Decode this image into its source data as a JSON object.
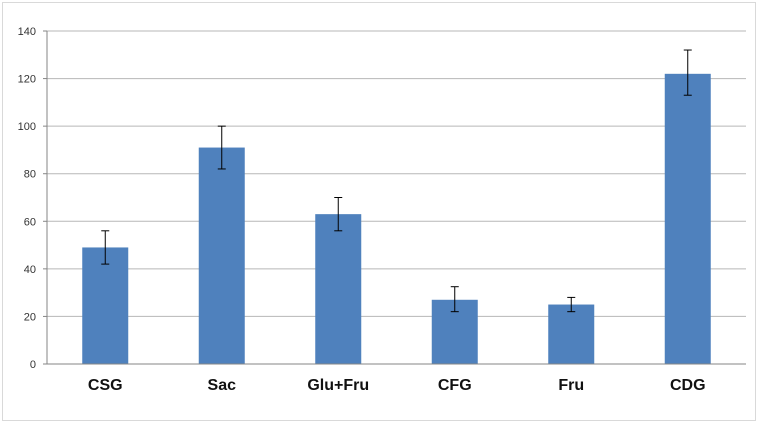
{
  "chart_data": {
    "type": "bar",
    "title": "",
    "xlabel": "",
    "ylabel": "",
    "categories": [
      "CSG",
      "Sac",
      "Glu+Fru",
      "CFG",
      "Fru",
      "CDG"
    ],
    "values": [
      49,
      91,
      63,
      27,
      25,
      122
    ],
    "error_low": [
      42,
      82,
      56,
      22,
      22,
      113
    ],
    "error_high": [
      56,
      100,
      70,
      32.5,
      28,
      132
    ],
    "ylim": [
      0,
      140
    ],
    "yticks": [
      "0",
      "20",
      "40",
      "60",
      "80",
      "100",
      "120",
      "140"
    ],
    "grid": true,
    "legend": "none",
    "bar_color": "#4f81bd",
    "grid_color": "#b7b7b7",
    "axis_color": "#868686"
  }
}
